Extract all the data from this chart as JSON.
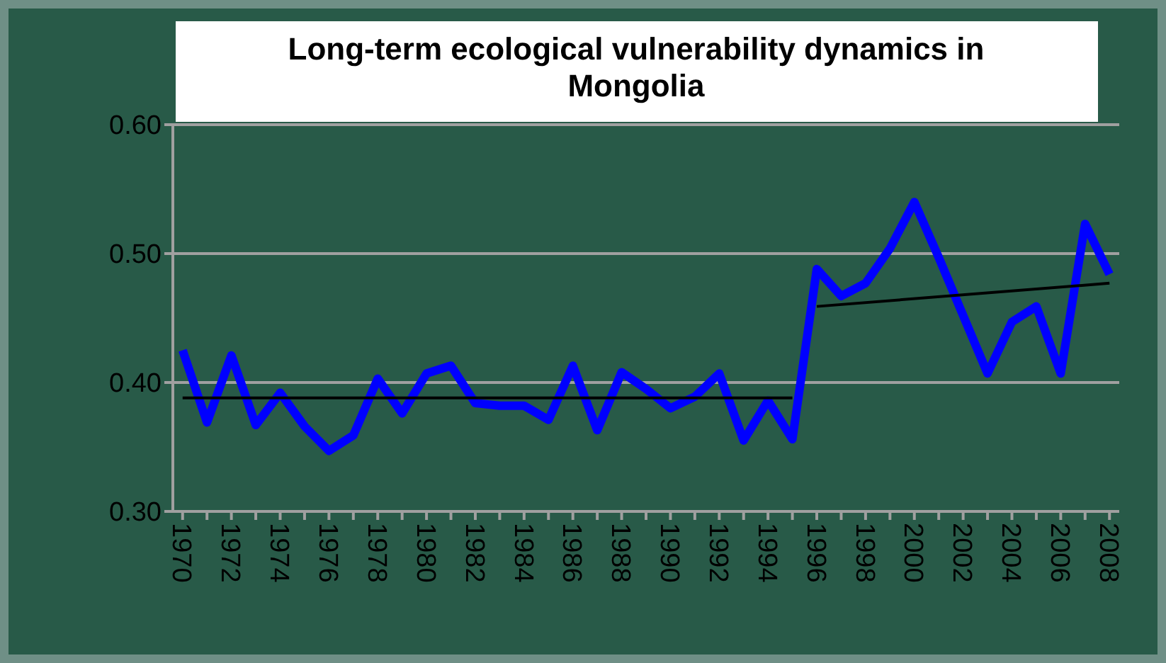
{
  "chart_data": {
    "type": "line",
    "title": "Long-term ecological vulnerability dynamics in Mongolia",
    "x": [
      1970,
      1971,
      1972,
      1973,
      1974,
      1975,
      1976,
      1977,
      1978,
      1979,
      1980,
      1981,
      1982,
      1983,
      1984,
      1985,
      1986,
      1987,
      1988,
      1989,
      1990,
      1991,
      1992,
      1993,
      1994,
      1995,
      1996,
      1997,
      1998,
      1999,
      2000,
      2001,
      2002,
      2003,
      2004,
      2005,
      2006,
      2007,
      2008
    ],
    "series": [
      {
        "color": "#0000ff",
        "values": [
          0.425,
          0.369,
          0.421,
          0.367,
          0.392,
          0.366,
          0.347,
          0.359,
          0.403,
          0.376,
          0.407,
          0.413,
          0.384,
          0.382,
          0.382,
          0.371,
          0.413,
          0.363,
          0.408,
          0.395,
          0.38,
          0.389,
          0.407,
          0.355,
          0.386,
          0.356,
          0.488,
          0.467,
          0.477,
          0.504,
          0.54,
          0.497,
          0.452,
          0.407,
          0.447,
          0.459,
          0.407,
          0.523,
          0.484
        ]
      },
      {
        "color": "#000000",
        "x": [
          1970,
          1995
        ],
        "values": [
          0.388,
          0.388
        ]
      },
      {
        "color": "#000000",
        "x": [
          1996,
          2008
        ],
        "values": [
          0.459,
          0.477
        ]
      }
    ],
    "xlim": [
      1969.6,
      2008.4
    ],
    "ylim": [
      0.3,
      0.6
    ],
    "xticks": [
      1970,
      {
        "value": 1971,
        "label": null
      },
      1972,
      {
        "value": 1973,
        "label": null
      },
      1974,
      {
        "value": 1975,
        "label": null
      },
      1976,
      {
        "value": 1977,
        "label": null
      },
      1978,
      {
        "value": 1979,
        "label": null
      },
      1980,
      {
        "value": 1981,
        "label": null
      },
      1982,
      {
        "value": 1983,
        "label": null
      },
      1984,
      {
        "value": 1985,
        "label": null
      },
      1986,
      {
        "value": 1987,
        "label": null
      },
      1988,
      {
        "value": 1989,
        "label": null
      },
      1990,
      {
        "value": 1991,
        "label": null
      },
      1992,
      {
        "value": 1993,
        "label": null
      },
      1994,
      {
        "value": 1995,
        "label": null
      },
      1996,
      {
        "value": 1997,
        "label": null
      },
      1998,
      {
        "value": 1999,
        "label": null
      },
      2000,
      {
        "value": 2001,
        "label": null
      },
      2002,
      {
        "value": 2003,
        "label": null
      },
      2004,
      {
        "value": 2005,
        "label": null
      },
      2006,
      {
        "value": 2007,
        "label": null
      },
      2008
    ],
    "yticks": [
      {
        "value": 0.3,
        "label": "0.30"
      },
      {
        "value": 0.4,
        "label": "0.40"
      },
      {
        "value": 0.5,
        "label": "0.50"
      },
      {
        "value": 0.6,
        "label": "0.60"
      }
    ],
    "grid": "y",
    "marker": "none",
    "line_style": "solid"
  }
}
